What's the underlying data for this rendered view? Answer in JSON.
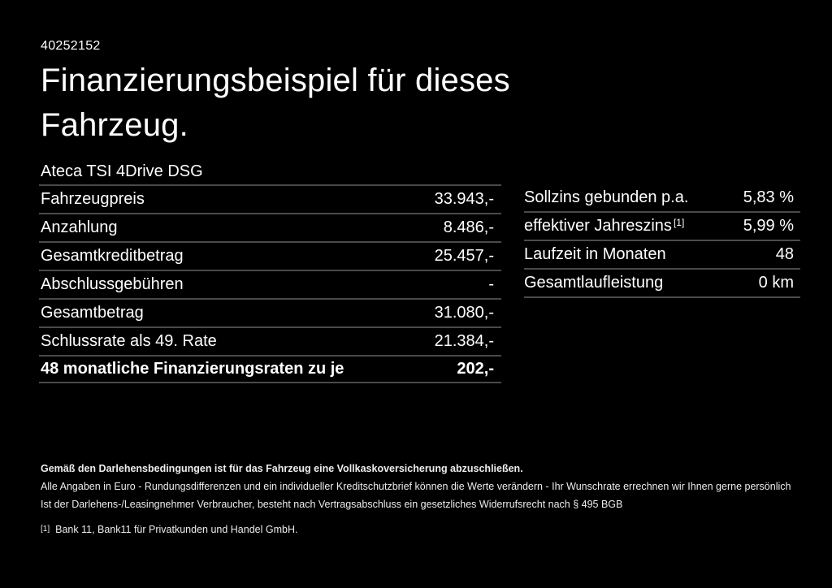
{
  "page": {
    "id_number": "40252152",
    "title_line1": "Finanzierungsbeispiel für dieses",
    "title_line2": "Fahrzeug.",
    "vehicle_model": "Ateca TSI 4Drive DSG"
  },
  "finance_table": {
    "rows": [
      {
        "label": "Fahrzeugpreis",
        "value": "33.943,-"
      },
      {
        "label": "Anzahlung",
        "value": "8.486,-"
      },
      {
        "label": "Gesamtkreditbetrag",
        "value": "25.457,-"
      },
      {
        "label": "Abschlussgebühren",
        "value": "-"
      },
      {
        "label": "Gesamtbetrag",
        "value": "31.080,-"
      },
      {
        "label": "Schlussrate als 49. Rate",
        "value": "21.384,-"
      },
      {
        "label": "48 monatliche Finanzierungsraten zu je",
        "value": "202,-"
      }
    ]
  },
  "conditions_table": {
    "rows": [
      {
        "label": "Sollzins gebunden p.a.",
        "sup": "",
        "value": "5,83 %"
      },
      {
        "label": "effektiver Jahreszins",
        "sup": "[1]",
        "value": "5,99 %"
      },
      {
        "label": "Laufzeit in Monaten",
        "sup": "",
        "value": "48"
      },
      {
        "label": "Gesamtlaufleistung",
        "sup": "",
        "value": "0 km"
      }
    ]
  },
  "footer": {
    "line_bold": "Gemäß den Darlehensbedingungen ist für das Fahrzeug eine Vollkaskoversicherung abzuschließen.",
    "line2": "Alle Angaben in Euro - Rundungsdifferenzen und ein individueller Kreditschutzbrief können die Werte verändern - Ihr Wunschrate errechnen wir Ihnen gerne persönlich",
    "line3": "Ist der Darlehens-/Leasingnehmer Verbraucher, besteht nach Vertragsabschluss ein gesetzliches Widerrufsrecht nach § 495 BGB",
    "footnote_marker": "[1]",
    "footnote_text": "Bank 11, Bank11 für Privatkunden und Handel GmbH."
  },
  "colors": {
    "background": "#000000",
    "text": "#ffffff",
    "divider": "#4a4a4a",
    "footer-text": "#ededed"
  }
}
